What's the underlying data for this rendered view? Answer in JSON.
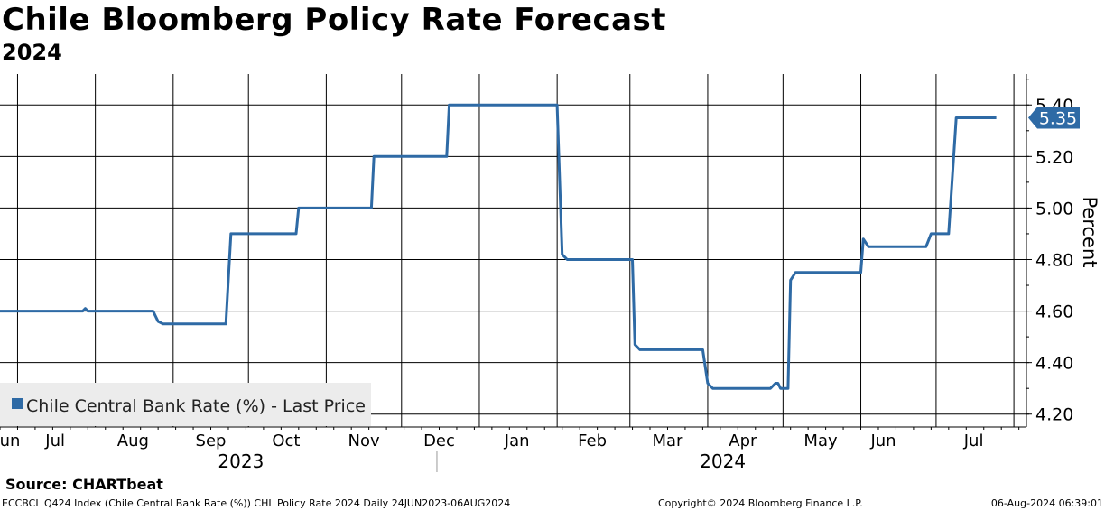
{
  "header": {
    "title": "Chile Bloomberg Policy Rate Forecast",
    "subtitle": "2024"
  },
  "footer": {
    "source": "Source: CHARTbeat",
    "ticker_info": "ECCBCL Q424 Index (Chile Central Bank Rate (%)) CHL Policy Rate 2024  Daily 24JUN2023-06AUG2024",
    "copyright": "Copyright© 2024 Bloomberg Finance L.P.",
    "timestamp": "06-Aug-2024 06:39:01"
  },
  "colors": {
    "series": "#2e6aa5",
    "grid": "#000000",
    "legend_bg": "#ececec",
    "label_bg": "#2e6aa5"
  },
  "chart_data": {
    "type": "line",
    "title": "Chile Bloomberg Policy Rate Forecast",
    "subtitle": "2024",
    "ylabel": "Percent",
    "xlabel": "",
    "ylim": [
      4.15,
      5.52
    ],
    "yticks": [
      4.2,
      4.4,
      4.6,
      4.8,
      5.0,
      5.2,
      5.4
    ],
    "ytick_labels": [
      "4.20",
      "4.40",
      "4.60",
      "4.80",
      "5.00",
      "5.20",
      "5.40"
    ],
    "xlim": [
      "2023-06-24",
      "2024-08-06"
    ],
    "x_month_labels": [
      {
        "label": "Jun",
        "date": "2023-06-27"
      },
      {
        "label": "Jul",
        "date": "2023-07-16"
      },
      {
        "label": "Aug",
        "date": "2023-08-16"
      },
      {
        "label": "Sep",
        "date": "2023-09-16"
      },
      {
        "label": "Oct",
        "date": "2023-10-16"
      },
      {
        "label": "Nov",
        "date": "2023-11-16"
      },
      {
        "label": "Dec",
        "date": "2023-12-16"
      },
      {
        "label": "Jan",
        "date": "2024-01-16"
      },
      {
        "label": "Feb",
        "date": "2024-02-15"
      },
      {
        "label": "Mar",
        "date": "2024-03-16"
      },
      {
        "label": "Apr",
        "date": "2024-04-15"
      },
      {
        "label": "May",
        "date": "2024-05-16"
      },
      {
        "label": "Jun",
        "date": "2024-06-10"
      },
      {
        "label": "Jul",
        "date": "2024-07-16"
      }
    ],
    "x_year_labels": [
      {
        "label": "2023",
        "date": "2023-09-28"
      },
      {
        "label": "2024",
        "date": "2024-04-07"
      }
    ],
    "x_gridlines": [
      "2023-07-01",
      "2023-08-01",
      "2023-09-01",
      "2023-10-01",
      "2023-11-01",
      "2023-12-01",
      "2024-01-01",
      "2024-02-01",
      "2024-03-01",
      "2024-04-01",
      "2024-05-01",
      "2024-06-01",
      "2024-07-01",
      "2024-08-01"
    ],
    "year_divider": "2024-01-01",
    "grid": true,
    "legend": {
      "position": "bottom-left",
      "entries": [
        "Chile Central Bank Rate (%) - Last Price"
      ]
    },
    "last_value_label": "5.35",
    "series": [
      {
        "name": "Chile Central Bank Rate (%) - Last Price",
        "points": [
          [
            "2023-06-24",
            4.6
          ],
          [
            "2023-07-27",
            4.6
          ],
          [
            "2023-07-28",
            4.61
          ],
          [
            "2023-07-29",
            4.6
          ],
          [
            "2023-08-24",
            4.6
          ],
          [
            "2023-08-26",
            4.56
          ],
          [
            "2023-08-28",
            4.55
          ],
          [
            "2023-09-22",
            4.55
          ],
          [
            "2023-09-24",
            4.9
          ],
          [
            "2023-10-20",
            4.9
          ],
          [
            "2023-10-21",
            5.0
          ],
          [
            "2023-11-19",
            5.0
          ],
          [
            "2023-11-20",
            5.2
          ],
          [
            "2023-12-19",
            5.2
          ],
          [
            "2023-12-20",
            5.4
          ],
          [
            "2024-02-01",
            5.4
          ],
          [
            "2024-02-03",
            4.82
          ],
          [
            "2024-02-05",
            4.8
          ],
          [
            "2024-03-02",
            4.8
          ],
          [
            "2024-03-03",
            4.47
          ],
          [
            "2024-03-05",
            4.45
          ],
          [
            "2024-03-30",
            4.45
          ],
          [
            "2024-04-01",
            4.32
          ],
          [
            "2024-04-03",
            4.3
          ],
          [
            "2024-04-26",
            4.3
          ],
          [
            "2024-04-28",
            4.32
          ],
          [
            "2024-04-29",
            4.32
          ],
          [
            "2024-04-30",
            4.3
          ],
          [
            "2024-05-03",
            4.3
          ],
          [
            "2024-05-04",
            4.72
          ],
          [
            "2024-05-06",
            4.75
          ],
          [
            "2024-06-01",
            4.75
          ],
          [
            "2024-06-02",
            4.88
          ],
          [
            "2024-06-04",
            4.85
          ],
          [
            "2024-06-27",
            4.85
          ],
          [
            "2024-06-29",
            4.9
          ],
          [
            "2024-07-06",
            4.9
          ],
          [
            "2024-07-09",
            5.35
          ],
          [
            "2024-07-25",
            5.35
          ]
        ]
      }
    ]
  }
}
